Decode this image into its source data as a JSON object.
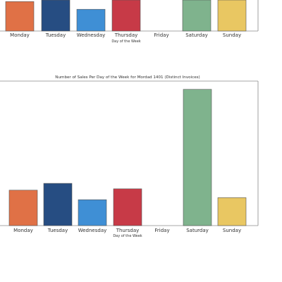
{
  "chart_data": [
    {
      "type": "bar",
      "title": "",
      "xlabel": "Day of the Week",
      "ylabel": "",
      "categories": [
        "Monday",
        "Tuesday",
        "Wednesday",
        "Thursday",
        "Friday",
        "Saturday",
        "Sunday"
      ],
      "values": [
        76,
        80,
        56,
        80,
        0,
        80,
        80
      ],
      "ylim": [
        0,
        80
      ],
      "colors": [
        "#e07146",
        "#264d82",
        "#3f8fd5",
        "#c73a47",
        "#ffffff",
        "#7fb38d",
        "#e9c762"
      ],
      "grid": false
    },
    {
      "type": "bar",
      "title": "Number of Sales Per Day of the Week for Mordad 1401 (Distinct Invoices)",
      "xlabel": "Day of the Week",
      "ylabel": "",
      "categories": [
        "Monday",
        "Tuesday",
        "Wednesday",
        "Thursday",
        "Friday",
        "Saturday",
        "Sunday"
      ],
      "values": [
        26,
        31,
        19,
        27,
        0,
        100,
        20.5
      ],
      "ylim": [
        0,
        104
      ],
      "colors": [
        "#e07146",
        "#264d82",
        "#3f8fd5",
        "#c73a47",
        "#ffffff",
        "#7fb38d",
        "#e9c762"
      ],
      "grid": false
    }
  ]
}
